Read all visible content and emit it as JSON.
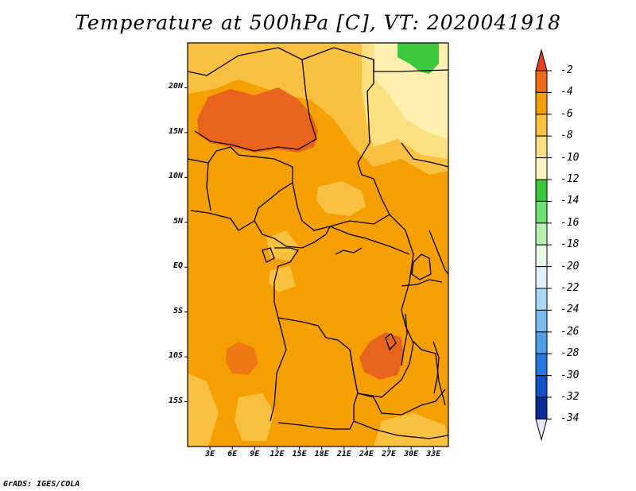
{
  "title": "Temperature at 500hPa [C], VT: 2020041918",
  "credit": "GrADS: IGES/COLA",
  "map": {
    "lat_labels": [
      "20N",
      "15N",
      "10N",
      "5N",
      "EQ",
      "5S",
      "10S",
      "15S"
    ],
    "lon_labels": [
      "3E",
      "6E",
      "9E",
      "12E",
      "15E",
      "18E",
      "21E",
      "24E",
      "27E",
      "30E",
      "33E"
    ],
    "lat_values": [
      20,
      15,
      10,
      5,
      0,
      -5,
      -10,
      -15
    ],
    "lon_values": [
      3,
      6,
      9,
      12,
      15,
      18,
      21,
      24,
      27,
      30,
      33
    ],
    "lon_range": [
      0,
      35
    ],
    "lat_range": [
      -20,
      25
    ]
  },
  "colorbar": {
    "labels": [
      "-2",
      "-4",
      "-6",
      "-8",
      "-10",
      "-12",
      "-14",
      "-16",
      "-18",
      "-20",
      "-22",
      "-24",
      "-26",
      "-28",
      "-30",
      "-32",
      "-34"
    ],
    "colors": [
      "#f05018",
      "#f06a10",
      "#f5a000",
      "#fac040",
      "#fde080",
      "#fff5c0",
      "#3cc83c",
      "#6ee06e",
      "#b4f0b4",
      "#e8fae8",
      "#e0f0ff",
      "#a8d8f8",
      "#78bcf0",
      "#4e9ee8",
      "#2878e0",
      "#1050c8",
      "#0a2c96",
      "#0a0a64"
    ],
    "top_arrow_color": "#e8401c",
    "bottom_arrow_color": "#e8e8f8"
  },
  "field_colors": {
    "base": "#f5a000",
    "warm": "#f07814",
    "warmer": "#e8641c",
    "cool": "#fac040",
    "cooler": "#fde080",
    "coolest": "#fff0b0",
    "green": "#3cc83c"
  }
}
